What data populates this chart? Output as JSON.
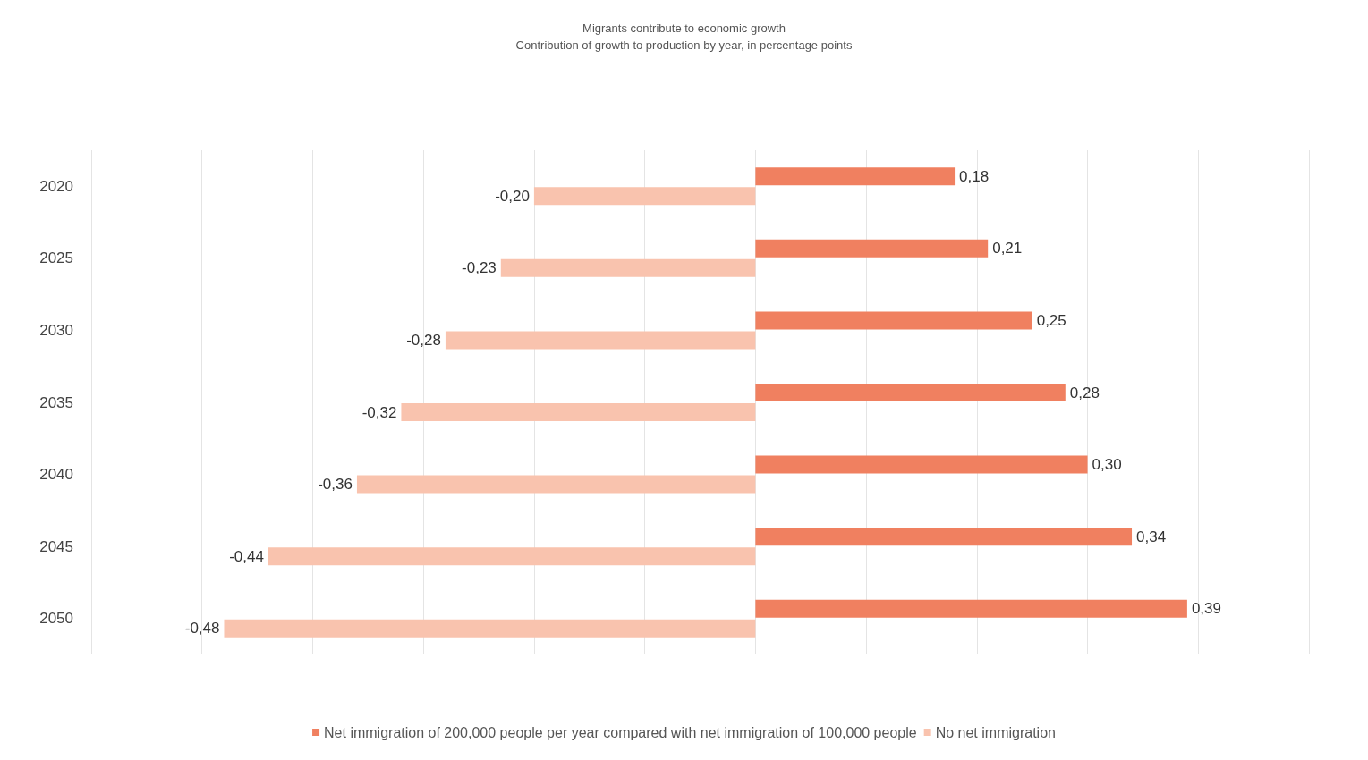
{
  "chart_data": {
    "type": "bar",
    "orientation": "horizontal",
    "title": "Migrants contribute to economic growth",
    "subtitle": "Contribution of growth to production by year, in percentage points",
    "categories": [
      "2020",
      "2025",
      "2030",
      "2035",
      "2040",
      "2045",
      "2050"
    ],
    "series": [
      {
        "name": "Net immigration of 200,000 people per year compared with net immigration of 100,000 people",
        "color": "#f08060",
        "values": [
          0.18,
          0.21,
          0.25,
          0.28,
          0.3,
          0.34,
          0.39
        ],
        "value_labels": [
          "0,18",
          "0,21",
          "0,25",
          "0,28",
          "0,30",
          "0,34",
          "0,39"
        ]
      },
      {
        "name": "No net immigration",
        "color": "#f9c3ae",
        "values": [
          -0.2,
          -0.23,
          -0.28,
          -0.32,
          -0.36,
          -0.44,
          -0.48
        ],
        "value_labels": [
          "-0,20",
          "-0,23",
          "-0,28",
          "-0,32",
          "-0,36",
          "-0,44",
          "-0,48"
        ]
      }
    ],
    "xlim": [
      -0.6,
      0.5
    ],
    "xticks": [
      {
        "value": -0.6,
        "label": null
      },
      {
        "value": -0.5,
        "label": null
      },
      {
        "value": -0.4,
        "label": null
      },
      {
        "value": -0.3,
        "label": null
      },
      {
        "value": -0.2,
        "label": null
      },
      {
        "value": -0.1,
        "label": null
      },
      {
        "value": 0,
        "label": null
      },
      {
        "value": 0.1,
        "label": null
      },
      {
        "value": 0.2,
        "label": null
      },
      {
        "value": 0.3,
        "label": null
      },
      {
        "value": 0.4,
        "label": null
      },
      {
        "value": 0.5,
        "label": null
      }
    ],
    "grid": "x",
    "legend": "bottom",
    "tick_labels": "y"
  }
}
